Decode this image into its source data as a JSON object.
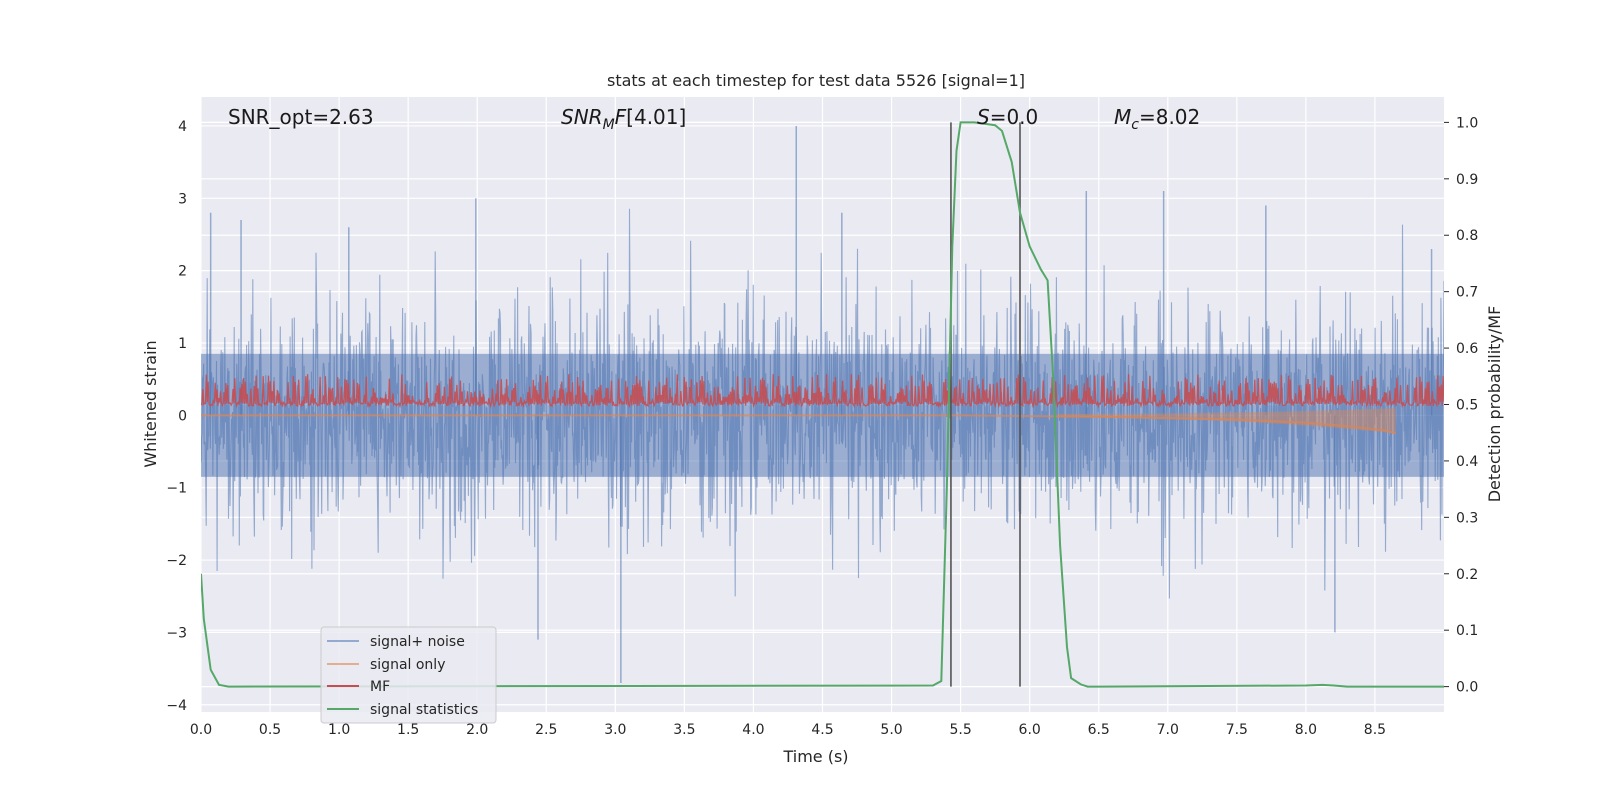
{
  "chart_data": {
    "type": "line",
    "title": "stats at each timestep for test data 5526 [signal=1]",
    "xlabel": "Time (s)",
    "ylabel": "Whitened strain",
    "y2label": "Detection probability/MF",
    "xlim": [
      0.0,
      9.0
    ],
    "ylim": [
      -4.1,
      4.4
    ],
    "y2lim": [
      -0.045,
      1.045
    ],
    "xticks": [
      "0.0",
      "0.5",
      "1.0",
      "1.5",
      "2.0",
      "2.5",
      "3.0",
      "3.5",
      "4.0",
      "4.5",
      "5.0",
      "5.5",
      "6.0",
      "6.5",
      "7.0",
      "7.5",
      "8.0",
      "8.5"
    ],
    "yticks": [
      "4",
      "3",
      "2",
      "1",
      "0",
      "−1",
      "−2",
      "−3",
      "−4"
    ],
    "y2ticks": [
      "1.0",
      "0.9",
      "0.8",
      "0.7",
      "0.6",
      "0.5",
      "0.4",
      "0.3",
      "0.2",
      "0.1",
      "0.0"
    ],
    "grid": true,
    "legend_position": "lower-left",
    "annotations": {
      "snr_opt": "SNR_opt=2.63",
      "snr_mf": "[4.01]",
      "s_value": "=0.0",
      "mc_value": "=8.02"
    },
    "vlines": [
      5.43,
      5.93
    ],
    "series": [
      {
        "name": "signal+ noise",
        "color": "#4c72b0",
        "envelope": {
          "typical_high": 1.6,
          "typical_low": -1.6,
          "peak_high": 4.0,
          "peak_low": -3.7,
          "core": [
            -0.85,
            0.85
          ]
        },
        "peaks": [
          [
            0.07,
            2.8
          ],
          [
            0.29,
            2.7
          ],
          [
            1.07,
            2.6
          ],
          [
            1.99,
            3.0
          ],
          [
            2.44,
            -3.1
          ],
          [
            3.04,
            -3.7
          ],
          [
            4.31,
            4.0
          ],
          [
            4.64,
            2.8
          ],
          [
            6.41,
            3.1
          ],
          [
            6.97,
            3.1
          ],
          [
            7.71,
            2.9
          ],
          [
            8.21,
            -3.0
          ],
          [
            8.91,
            2.3
          ]
        ]
      },
      {
        "name": "signal only",
        "color": "#dd8452",
        "values_x": [
          0.0,
          5.5,
          6.5,
          7.5,
          8.0,
          8.3,
          8.55,
          8.65
        ],
        "values_y": [
          0.0,
          0.0,
          -0.02,
          -0.06,
          -0.1,
          -0.15,
          -0.2,
          -0.25
        ]
      },
      {
        "name": "MF",
        "color": "#c44e52",
        "range": [
          0.13,
          0.93
        ]
      },
      {
        "name": "signal statistics",
        "color": "#55a868",
        "x": [
          0.0,
          0.02,
          0.07,
          0.13,
          0.2,
          5.3,
          5.36,
          5.4,
          5.44,
          5.47,
          5.5,
          5.6,
          5.75,
          5.8,
          5.87,
          5.93,
          6.0,
          6.08,
          6.13,
          6.17,
          6.22,
          6.27,
          6.3,
          6.37,
          6.42,
          6.5,
          8.0,
          8.12,
          8.2,
          8.3,
          9.0
        ],
        "y": [
          0.2,
          0.12,
          0.03,
          0.003,
          0.0,
          0.002,
          0.01,
          0.35,
          0.78,
          0.95,
          1.0,
          1.0,
          0.995,
          0.985,
          0.93,
          0.84,
          0.78,
          0.74,
          0.72,
          0.55,
          0.25,
          0.07,
          0.015,
          0.004,
          0.0,
          0.0,
          0.002,
          0.003,
          0.002,
          0.0,
          0.0
        ]
      }
    ]
  }
}
